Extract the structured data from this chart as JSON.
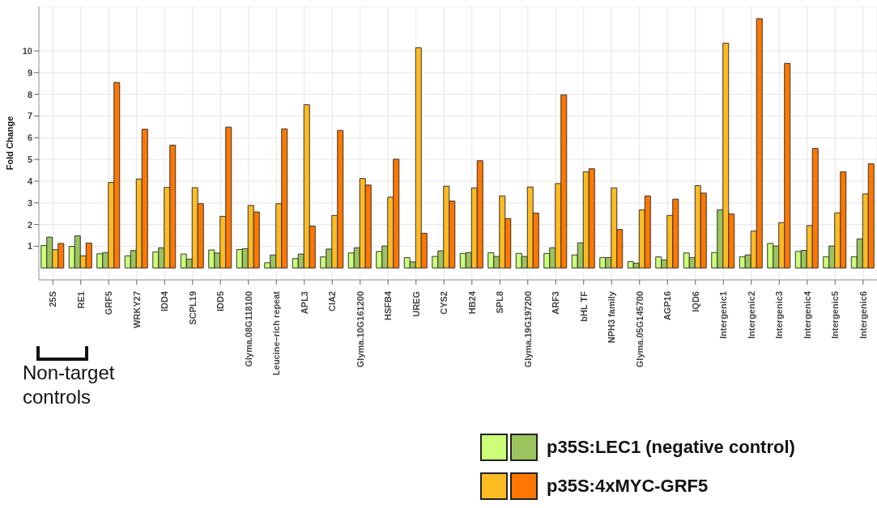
{
  "chart_data": {
    "type": "bar",
    "ylabel": "Fold Change",
    "categories": [
      "25S",
      "RE1",
      "GRF5",
      "WRKY27",
      "IDD4",
      "SCPL19",
      "IDD5",
      "Glyma.08G118100",
      "Leucine–rich repeat",
      "APL3",
      "CIA2",
      "Glyma.10G161200",
      "HSFB4",
      "UREG",
      "CYS2",
      "HB24",
      "SPL8",
      "Glyma.19G197200",
      "ARF3",
      "bHL TF",
      "NPH3 family",
      "Glyma.05G145700",
      "AGP16",
      "IQD6",
      "Intergenic1",
      "Intergenic2",
      "Intergenic3",
      "Intergenic4",
      "Intergenic5",
      "Intergenic6"
    ],
    "series": [
      {
        "color": "#ccff77",
        "values": [
          1.03,
          0.99,
          0.65,
          0.56,
          0.74,
          0.64,
          0.83,
          0.85,
          0.24,
          0.43,
          0.51,
          0.69,
          0.76,
          0.47,
          0.53,
          0.67,
          0.7,
          0.67,
          0.67,
          0.6,
          0.48,
          0.29,
          0.51,
          0.69,
          0.71,
          0.52,
          1.13,
          0.76,
          0.52,
          0.52
        ]
      },
      {
        "name": "p35S:LEC1 (negative control)",
        "color": "#9cc45e",
        "values": [
          1.42,
          1.48,
          0.71,
          0.8,
          0.93,
          0.41,
          0.69,
          0.89,
          0.6,
          0.64,
          0.87,
          0.93,
          1.01,
          0.28,
          0.79,
          0.71,
          0.53,
          0.53,
          0.93,
          1.16,
          0.48,
          0.22,
          0.37,
          0.48,
          2.68,
          0.6,
          1.01,
          0.81,
          1.01,
          1.34
        ]
      },
      {
        "color": "#ffbb22",
        "values": [
          0.84,
          0.56,
          3.94,
          4.1,
          3.71,
          3.7,
          2.38,
          2.88,
          2.96,
          7.52,
          2.42,
          4.12,
          3.26,
          10.15,
          3.77,
          3.69,
          3.32,
          3.73,
          3.89,
          4.43,
          3.69,
          2.68,
          2.42,
          3.79,
          10.36,
          1.7,
          2.09,
          1.95,
          2.54,
          3.41
        ]
      },
      {
        "name": "p35S:4xMYC-GRF5",
        "color": "#ff7700",
        "values": [
          1.13,
          1.15,
          8.55,
          6.39,
          5.66,
          2.96,
          6.49,
          2.58,
          6.41,
          1.93,
          6.34,
          3.82,
          5.01,
          1.6,
          3.08,
          4.94,
          2.28,
          2.53,
          7.98,
          4.57,
          1.77,
          3.32,
          3.17,
          3.45,
          2.49,
          11.49,
          9.43,
          5.51,
          4.43,
          4.8
        ]
      }
    ],
    "ylim": [
      -0.55,
      12.05
    ],
    "yticks": [
      1,
      2,
      3,
      4,
      5,
      6,
      7,
      8,
      9,
      10
    ],
    "grid": true,
    "legend": "bottom right",
    "annotations": [
      "Non-target controls"
    ]
  }
}
